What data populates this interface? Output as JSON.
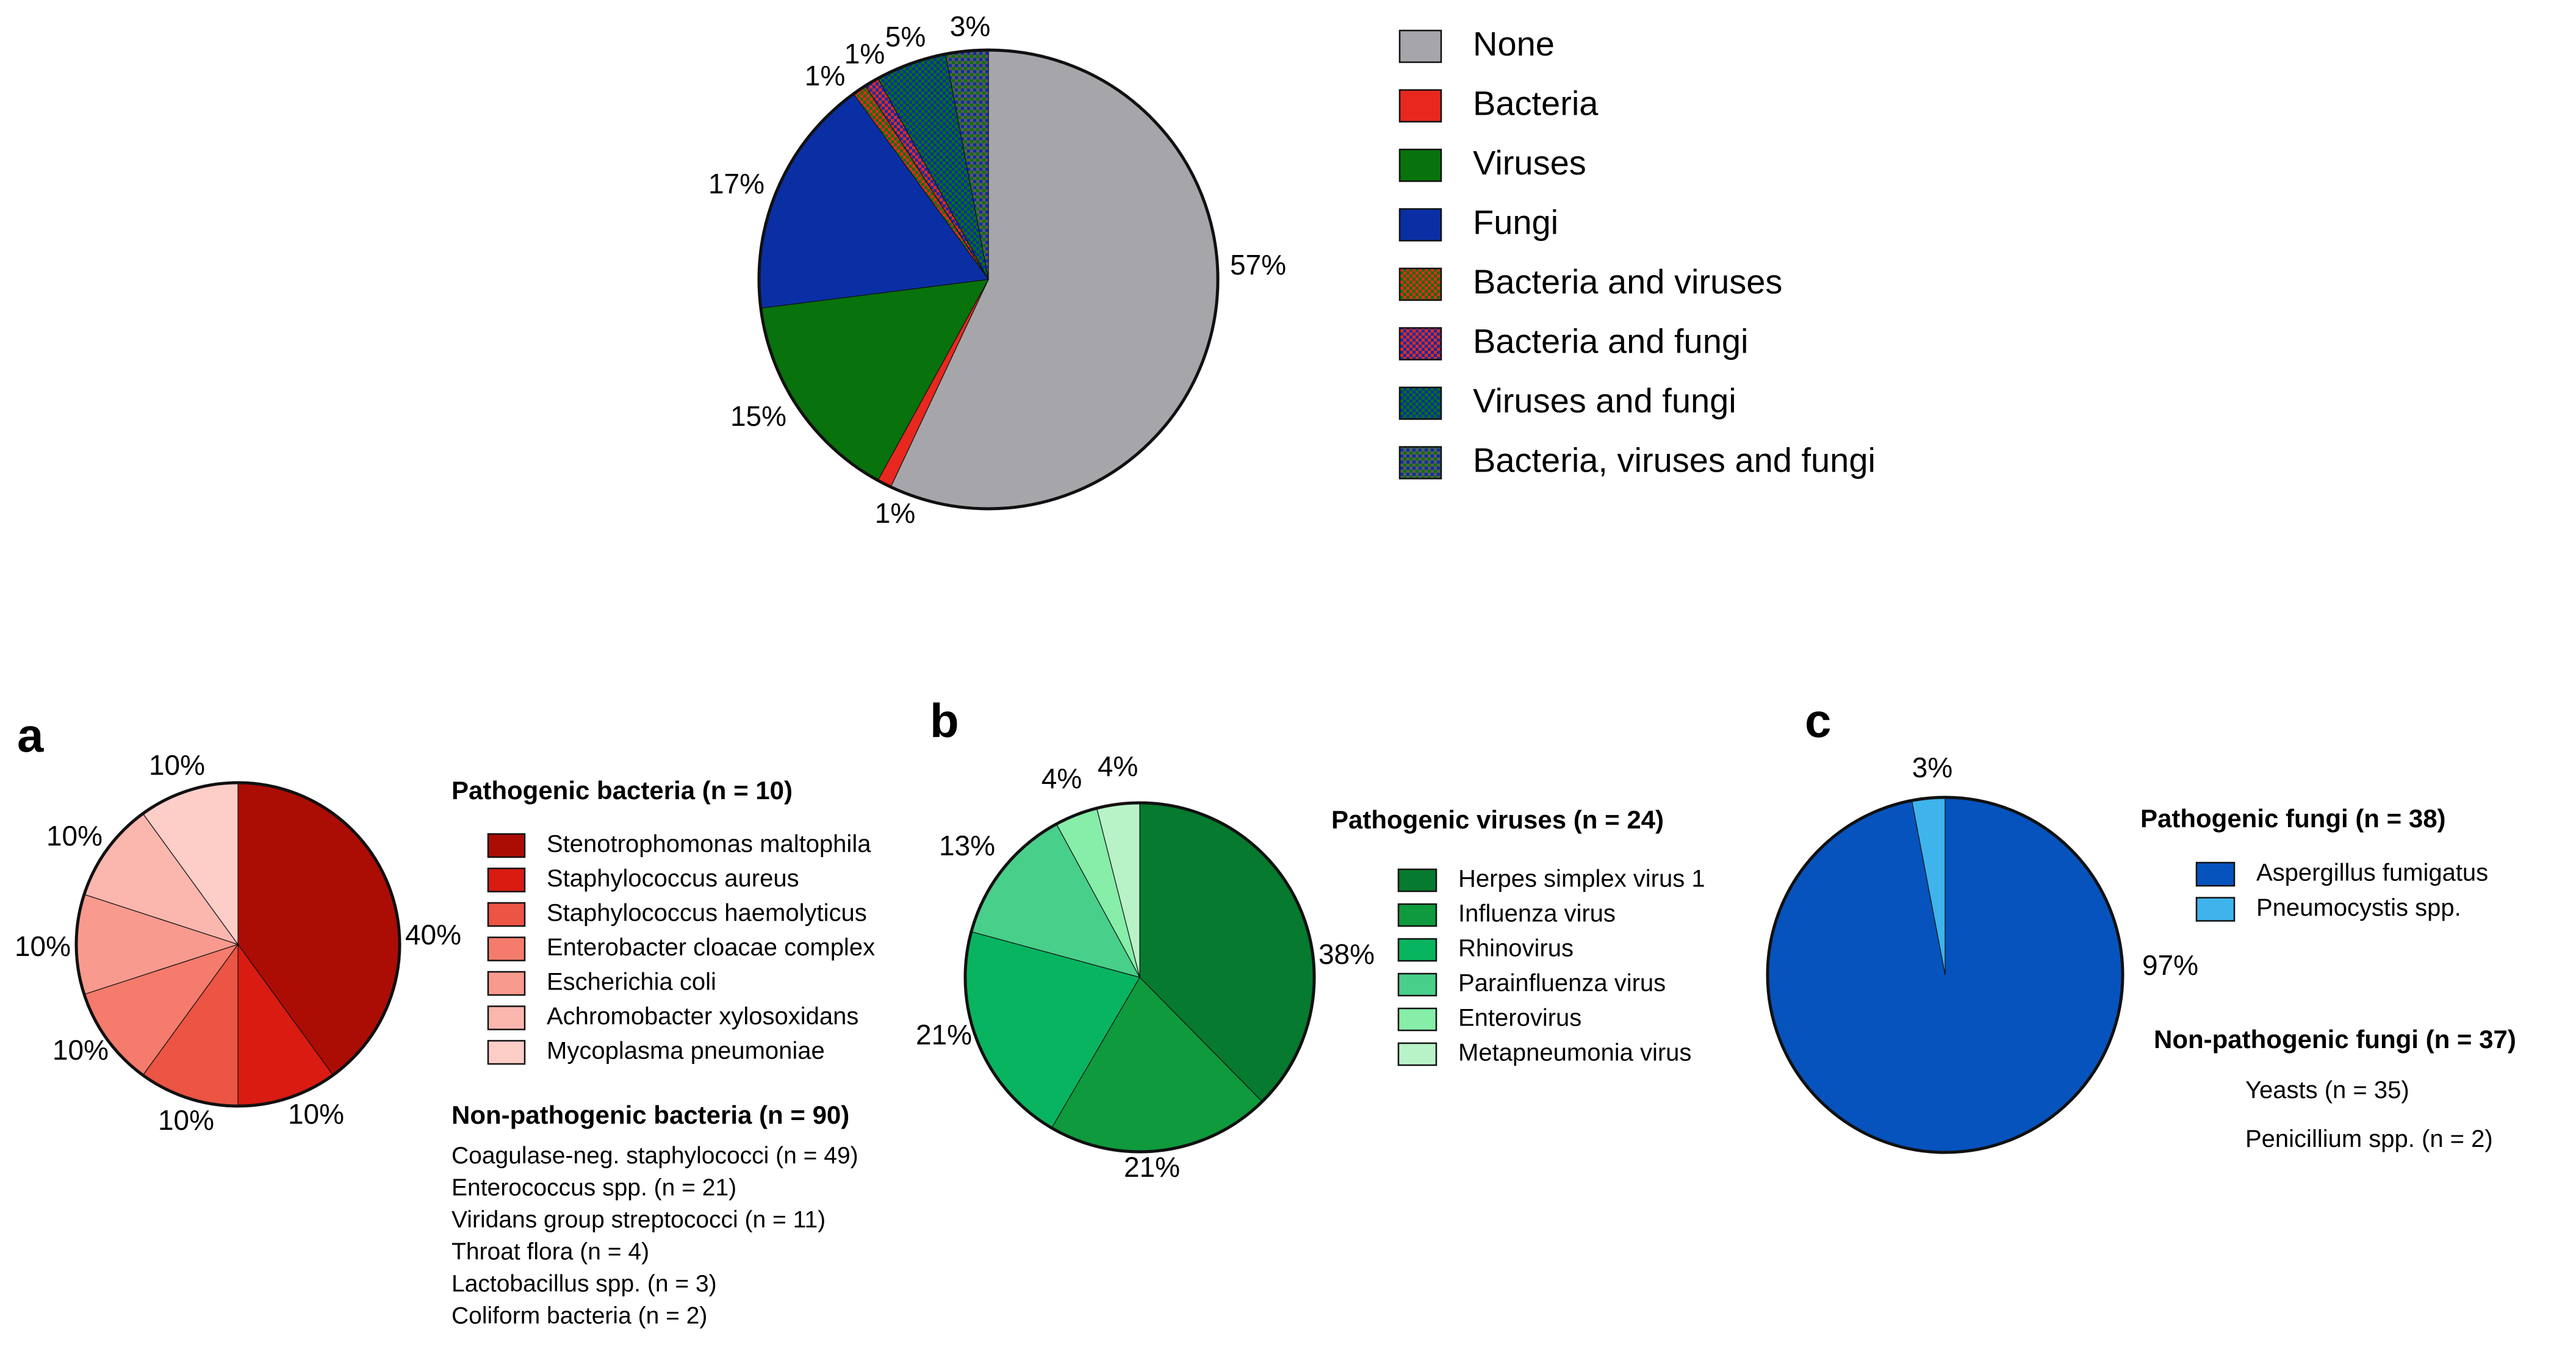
{
  "chart_data": [
    {
      "id": "overview",
      "type": "pie",
      "title": "",
      "start_angle_deg": 0,
      "slices": [
        {
          "label": "None",
          "value": 57,
          "display": "57%",
          "color": "#A6A6AA",
          "pattern": null
        },
        {
          "label": "Bacteria",
          "value": 1,
          "display": "1%",
          "color": "#E8281E",
          "pattern": null
        },
        {
          "label": "Viruses",
          "value": 15,
          "display": "15%",
          "color": "#08720C",
          "pattern": null
        },
        {
          "label": "Fungi",
          "value": 17,
          "display": "17%",
          "color": "#0A2FA5",
          "pattern": null
        },
        {
          "label": "Bacteria and viruses",
          "value": 1,
          "display": "1%",
          "color": "#E8281E",
          "pattern": "#08720C"
        },
        {
          "label": "Bacteria and fungi",
          "value": 1,
          "display": "1%",
          "color": "#E8281E",
          "pattern": "#0A2FA5"
        },
        {
          "label": "Viruses and fungi",
          "value": 5,
          "display": "5%",
          "color": "#0A2FA5",
          "pattern": "#08720C"
        },
        {
          "label": "Bacteria, viruses and fungi",
          "value": 3,
          "display": "3%",
          "color": "#5A5A5A",
          "pattern": "#08720C"
        }
      ],
      "legend": [
        "None",
        "Bacteria",
        "Viruses",
        "Fungi",
        "Bacteria and viruses",
        "Bacteria and fungi",
        "Viruses and fungi",
        "Bacteria, viruses and fungi"
      ]
    },
    {
      "id": "a",
      "panel_label": "a",
      "type": "pie",
      "legend_title": "Pathogenic bacteria (n = 10)",
      "start_angle_deg": 0,
      "slices": [
        {
          "label": "Stenotrophomonas maltophila",
          "value": 40,
          "display": "40%",
          "color": "#AB0D05"
        },
        {
          "label": "Staphylococcus aureus",
          "value": 10,
          "display": "10%",
          "color": "#D91B12"
        },
        {
          "label": "Staphylococcus haemolyticus",
          "value": 10,
          "display": "10%",
          "color": "#EC5444"
        },
        {
          "label": "Enterobacter cloacae complex",
          "value": 10,
          "display": "10%",
          "color": "#F57B6C"
        },
        {
          "label": "Escherichia coli",
          "value": 10,
          "display": "10%",
          "color": "#F99A8E"
        },
        {
          "label": "Achromobacter xylosoxidans",
          "value": 10,
          "display": "10%",
          "color": "#FBB6AE"
        },
        {
          "label": "Mycoplasma pneumoniae",
          "value": 10,
          "display": "10%",
          "color": "#FDCDC8"
        }
      ],
      "secondary_title": "Non-pathogenic bacteria (n = 90)",
      "secondary_list": [
        "Coagulase-neg. staphylococci (n = 49)",
        "Enterococcus spp. (n = 21)",
        "Viridans group streptococci (n = 11)",
        "Throat flora (n = 4)",
        "Lactobacillus spp. (n = 3)",
        "Coliform bacteria (n = 2)"
      ]
    },
    {
      "id": "b",
      "panel_label": "b",
      "type": "pie",
      "legend_title": "Pathogenic viruses (n = 24)",
      "start_angle_deg": 0,
      "slices": [
        {
          "label": "Herpes simplex virus 1",
          "value": 38,
          "display": "38%",
          "color": "#067A2E"
        },
        {
          "label": "Influenza virus",
          "value": 21,
          "display": "21%",
          "color": "#0E9A3D"
        },
        {
          "label": "Rhinovirus",
          "value": 21,
          "display": "21%",
          "color": "#08B45F"
        },
        {
          "label": "Parainfluenza virus",
          "value": 13,
          "display": "13%",
          "color": "#48CF8A"
        },
        {
          "label": "Enterovirus",
          "value": 4,
          "display": "4%",
          "color": "#86EEA8"
        },
        {
          "label": "Metapneumonia virus",
          "value": 4,
          "display": "4%",
          "color": "#B8F3C7"
        }
      ]
    },
    {
      "id": "c",
      "panel_label": "c",
      "type": "pie",
      "legend_title": "Pathogenic fungi (n = 38)",
      "start_angle_deg": 0,
      "slices": [
        {
          "label": "Aspergillus fumigatus",
          "value": 97,
          "display": "97%",
          "color": "#0653BE"
        },
        {
          "label": "Pneumocystis spp.",
          "value": 3,
          "display": "3%",
          "color": "#3FB3EC"
        }
      ],
      "secondary_title": "Non-pathogenic fungi (n = 37)",
      "secondary_list": [
        "Yeasts (n = 35)",
        "Penicillium spp. (n = 2)"
      ]
    }
  ]
}
